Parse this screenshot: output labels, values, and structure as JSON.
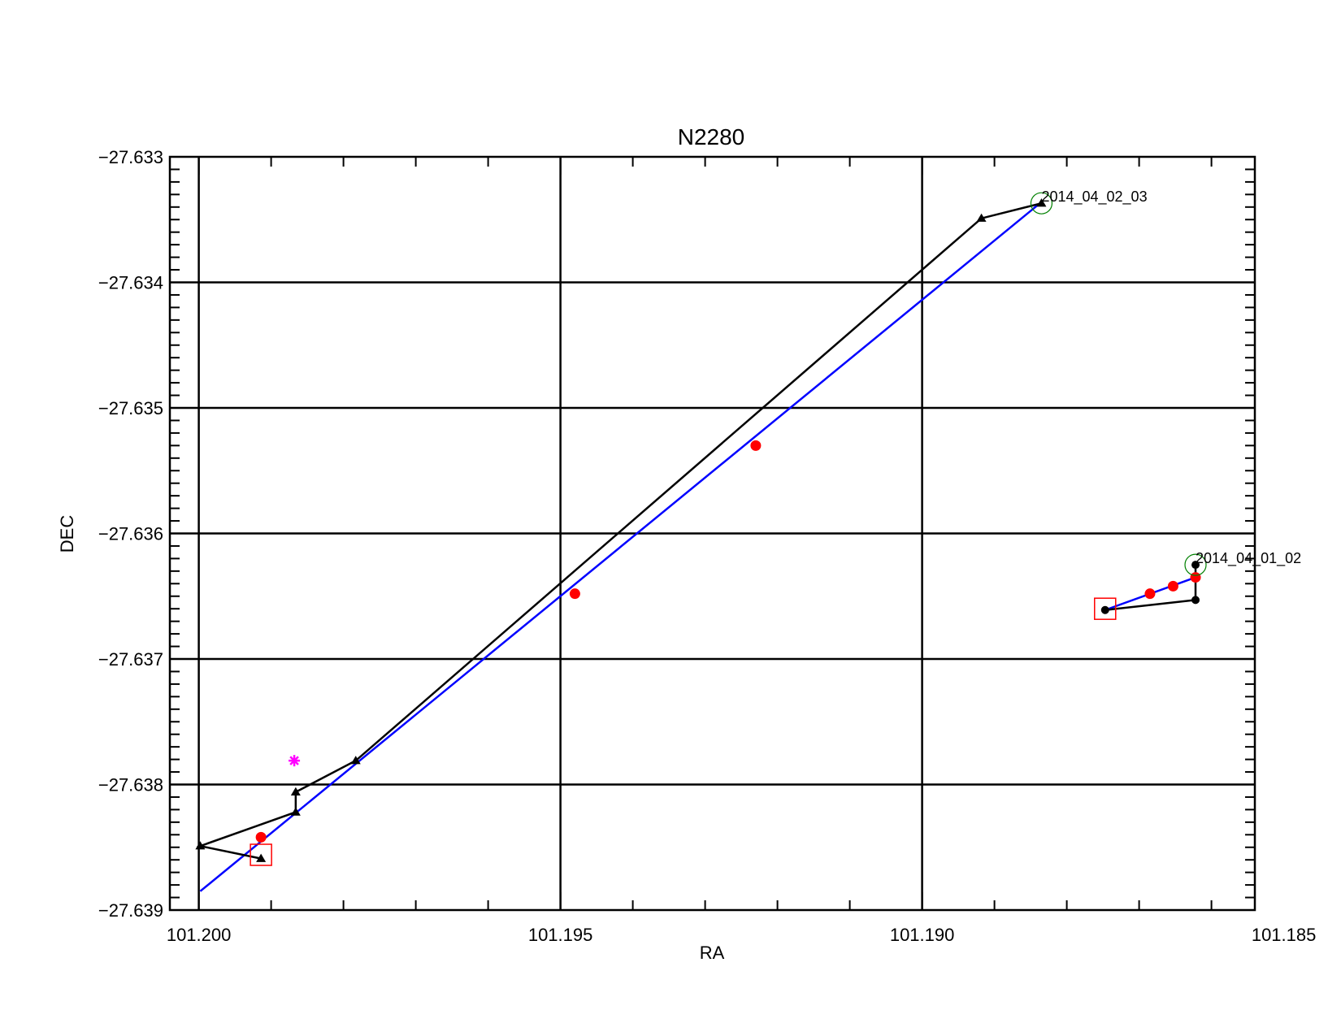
{
  "chart_data": {
    "type": "scatter",
    "title": "N2280",
    "xlabel": "RA",
    "ylabel": "DEC",
    "xlim": [
      101.2004,
      101.1854
    ],
    "ylim": [
      -27.639,
      -27.633
    ],
    "x_reversed": true,
    "grid": true,
    "xticks": [
      101.2,
      101.195,
      101.19,
      101.185
    ],
    "xtick_labels": [
      "101.200",
      "101.195",
      "101.190",
      "101.185"
    ],
    "yticks": [
      -27.633,
      -27.634,
      -27.635,
      -27.636,
      -27.637,
      -27.638,
      -27.639
    ],
    "ytick_labels": [
      "−27.633",
      "−27.634",
      "−27.635",
      "−27.636",
      "−27.637",
      "−27.638",
      "−27.639"
    ],
    "colors": {
      "path": "#000000",
      "fit": "#0000ff",
      "predicted": "#ff0000",
      "start_marker": "#ff0000",
      "end_marker": "#008000",
      "reference": "#ff00ff"
    },
    "groups": [
      {
        "label": "2014_04_02_03",
        "path_marker": "triangle",
        "path": [
          {
            "x": 101.19914,
            "y": -27.63859
          },
          {
            "x": 101.19998,
            "y": -27.63849
          },
          {
            "x": 101.19866,
            "y": -27.63822
          },
          {
            "x": 101.19866,
            "y": -27.63806
          },
          {
            "x": 101.19783,
            "y": -27.63781
          },
          {
            "x": 101.18918,
            "y": -27.63349
          },
          {
            "x": 101.18835,
            "y": -27.63337
          }
        ],
        "fit_line": [
          {
            "x": 101.19998,
            "y": -27.63885
          },
          {
            "x": 101.18835,
            "y": -27.63336
          }
        ],
        "predicted_points": [
          {
            "x": 101.19914,
            "y": -27.63842
          },
          {
            "x": 101.1948,
            "y": -27.63648
          },
          {
            "x": 101.1923,
            "y": -27.6353
          }
        ],
        "start_marker": {
          "x": 101.19914,
          "y": -27.63856
        },
        "end_marker": {
          "x": 101.18835,
          "y": -27.63337
        },
        "reference_point": {
          "x": 101.19868,
          "y": -27.63781
        }
      },
      {
        "label": "2014_04_01_02",
        "path_marker": "circle",
        "path": [
          {
            "x": 101.18622,
            "y": -27.63625
          },
          {
            "x": 101.18622,
            "y": -27.63653
          },
          {
            "x": 101.18747,
            "y": -27.63661
          }
        ],
        "fit_line": [
          {
            "x": 101.18747,
            "y": -27.63661
          },
          {
            "x": 101.18622,
            "y": -27.63635
          }
        ],
        "predicted_points": [
          {
            "x": 101.18685,
            "y": -27.63648
          },
          {
            "x": 101.18653,
            "y": -27.63642
          },
          {
            "x": 101.18622,
            "y": -27.63635
          }
        ],
        "start_marker": {
          "x": 101.18747,
          "y": -27.6366
        },
        "end_marker": {
          "x": 101.18622,
          "y": -27.63625
        }
      }
    ]
  }
}
